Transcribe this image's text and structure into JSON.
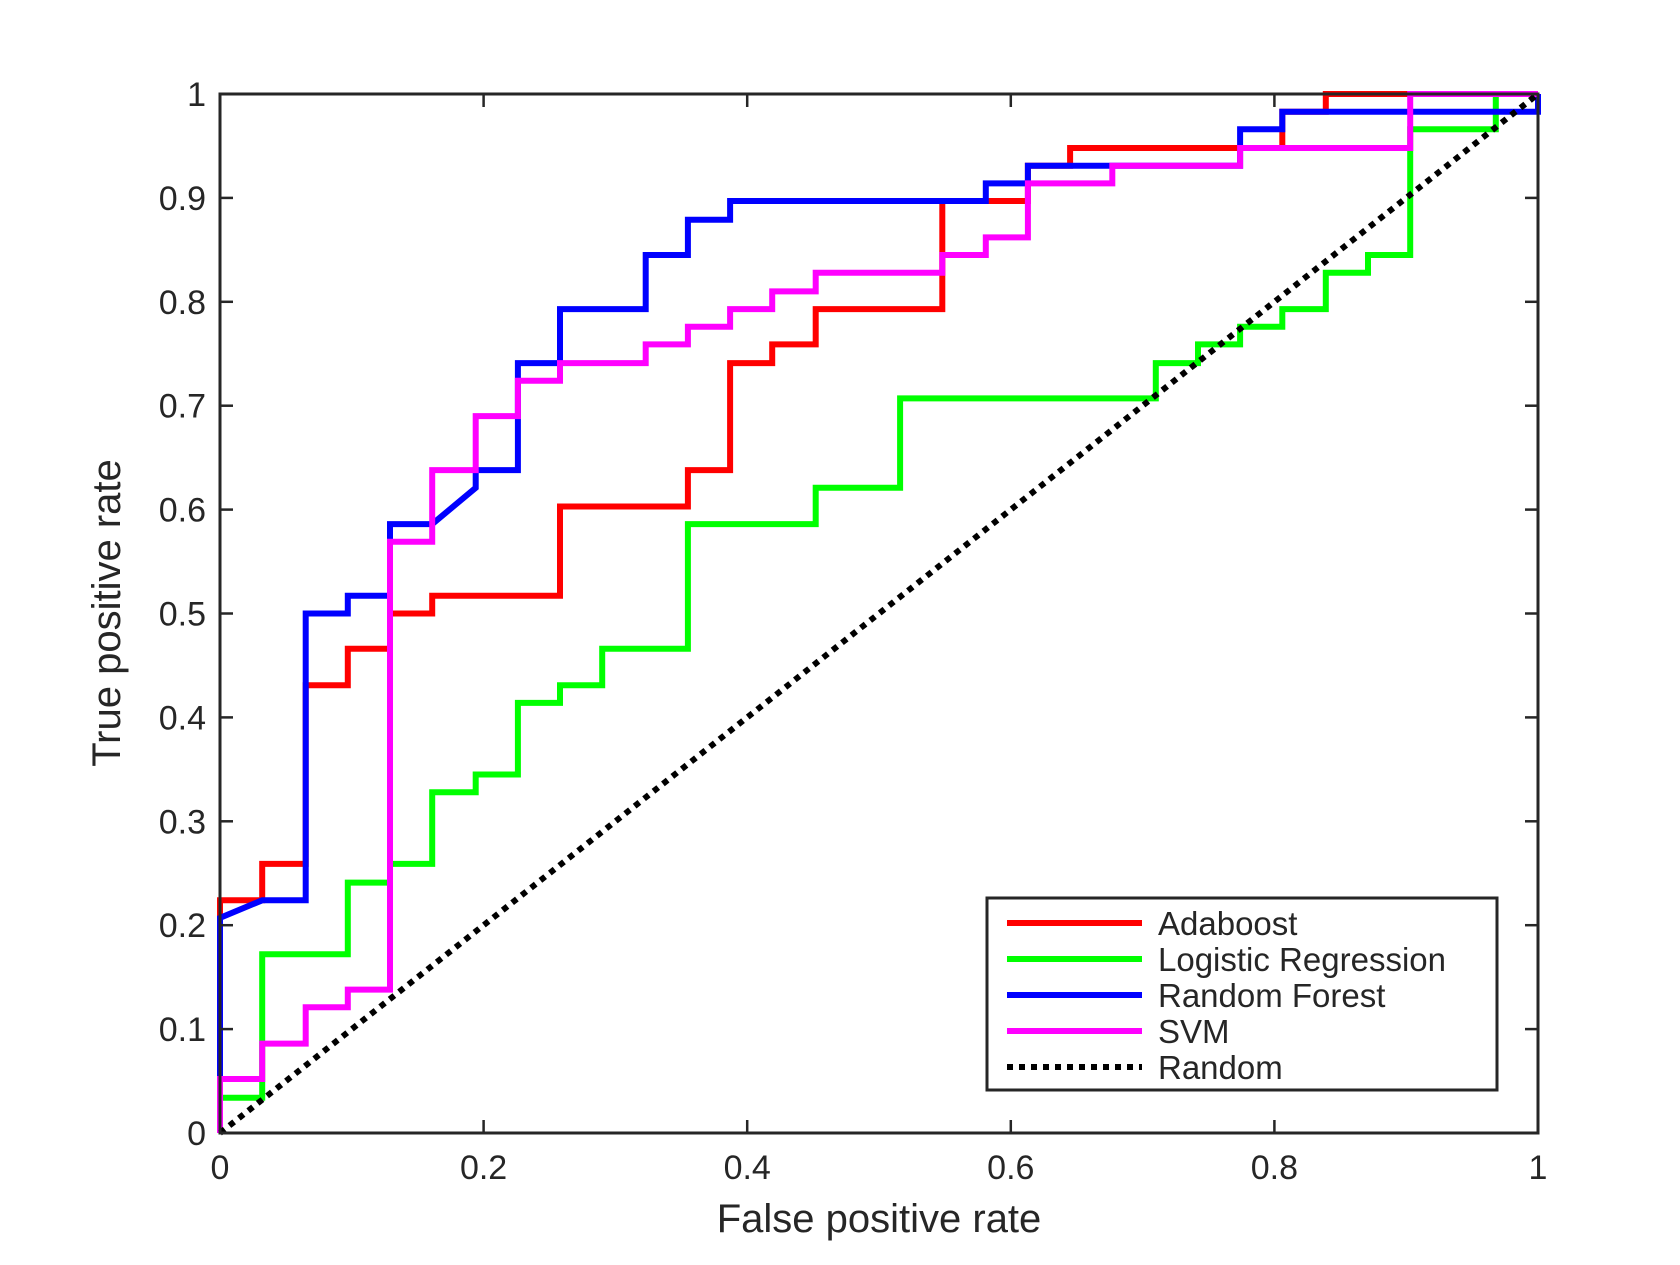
{
  "chart_data": {
    "type": "line",
    "title": "",
    "xlabel": "False positive rate",
    "ylabel": "True positive rate",
    "xlim": [
      0,
      1
    ],
    "ylim": [
      0,
      1
    ],
    "xticks": [
      0,
      0.2,
      0.4,
      0.6,
      0.8,
      1
    ],
    "xtick_labels": [
      "0",
      "0.2",
      "0.4",
      "0.6",
      "0.8",
      "1"
    ],
    "yticks": [
      0,
      0.1,
      0.2,
      0.3,
      0.4,
      0.5,
      0.6,
      0.7,
      0.8,
      0.9,
      1
    ],
    "ytick_labels": [
      "0",
      "0.1",
      "0.2",
      "0.3",
      "0.4",
      "0.5",
      "0.6",
      "0.7",
      "0.8",
      "0.9",
      "1"
    ],
    "grid": false,
    "legend_position": "bottom-right",
    "series": [
      {
        "name": "Adaboost",
        "color": "#ff0000",
        "style": "solid",
        "x": [
          0,
          0,
          0.032,
          0.032,
          0.065,
          0.065,
          0.097,
          0.097,
          0.129,
          0.129,
          0.161,
          0.161,
          0.258,
          0.258,
          0.355,
          0.355,
          0.387,
          0.387,
          0.419,
          0.419,
          0.452,
          0.452,
          0.548,
          0.548,
          0.613,
          0.613,
          0.645,
          0.645,
          0.806,
          0.806,
          0.839,
          0.839,
          1
        ],
        "y": [
          0,
          0.224,
          0.224,
          0.259,
          0.259,
          0.431,
          0.431,
          0.466,
          0.466,
          0.5,
          0.5,
          0.517,
          0.517,
          0.603,
          0.603,
          0.638,
          0.638,
          0.741,
          0.741,
          0.759,
          0.759,
          0.793,
          0.793,
          0.897,
          0.897,
          0.931,
          0.931,
          0.948,
          0.948,
          0.983,
          0.983,
          1.0,
          1.0
        ]
      },
      {
        "name": "Logistic Regression",
        "color": "#00ff00",
        "style": "solid",
        "x": [
          0,
          0,
          0.032,
          0.032,
          0.097,
          0.097,
          0.129,
          0.129,
          0.161,
          0.161,
          0.194,
          0.194,
          0.226,
          0.226,
          0.258,
          0.258,
          0.29,
          0.29,
          0.355,
          0.355,
          0.452,
          0.452,
          0.516,
          0.516,
          0.71,
          0.71,
          0.742,
          0.742,
          0.774,
          0.774,
          0.806,
          0.806,
          0.839,
          0.839,
          0.871,
          0.871,
          0.903,
          0.903,
          0.968,
          0.968,
          1
        ],
        "y": [
          0,
          0.034,
          0.034,
          0.172,
          0.172,
          0.241,
          0.241,
          0.259,
          0.259,
          0.328,
          0.328,
          0.345,
          0.345,
          0.414,
          0.414,
          0.431,
          0.431,
          0.466,
          0.466,
          0.586,
          0.586,
          0.621,
          0.621,
          0.707,
          0.707,
          0.741,
          0.741,
          0.759,
          0.759,
          0.776,
          0.776,
          0.793,
          0.793,
          0.828,
          0.828,
          0.845,
          0.845,
          0.966,
          0.966,
          1.0,
          1.0
        ]
      },
      {
        "name": "Random Forest",
        "color": "#0000ff",
        "style": "solid",
        "x": [
          0,
          0,
          0.032,
          0.065,
          0.065,
          0.097,
          0.097,
          0.129,
          0.129,
          0.161,
          0.194,
          0.194,
          0.226,
          0.226,
          0.258,
          0.258,
          0.323,
          0.323,
          0.355,
          0.355,
          0.387,
          0.387,
          0.581,
          0.581,
          0.613,
          0.613,
          0.677,
          0.774,
          0.774,
          0.806,
          0.806,
          1,
          1
        ],
        "y": [
          0,
          0.207,
          0.224,
          0.224,
          0.5,
          0.5,
          0.517,
          0.517,
          0.586,
          0.586,
          0.621,
          0.638,
          0.638,
          0.741,
          0.741,
          0.793,
          0.793,
          0.845,
          0.845,
          0.879,
          0.879,
          0.897,
          0.897,
          0.914,
          0.914,
          0.931,
          0.931,
          0.931,
          0.966,
          0.966,
          0.983,
          0.983,
          1.0
        ]
      },
      {
        "name": "SVM",
        "color": "#ff00ff",
        "style": "solid",
        "x": [
          0,
          0,
          0.032,
          0.032,
          0.065,
          0.065,
          0.097,
          0.097,
          0.129,
          0.129,
          0.161,
          0.161,
          0.194,
          0.194,
          0.226,
          0.226,
          0.258,
          0.258,
          0.323,
          0.323,
          0.355,
          0.355,
          0.387,
          0.387,
          0.419,
          0.419,
          0.452,
          0.452,
          0.548,
          0.548,
          0.581,
          0.581,
          0.613,
          0.613,
          0.677,
          0.677,
          0.774,
          0.774,
          0.903,
          0.903,
          1
        ],
        "y": [
          0,
          0.052,
          0.052,
          0.086,
          0.086,
          0.121,
          0.121,
          0.138,
          0.138,
          0.569,
          0.569,
          0.638,
          0.638,
          0.69,
          0.69,
          0.724,
          0.724,
          0.741,
          0.741,
          0.759,
          0.759,
          0.776,
          0.776,
          0.793,
          0.793,
          0.81,
          0.81,
          0.828,
          0.828,
          0.845,
          0.845,
          0.862,
          0.862,
          0.914,
          0.914,
          0.931,
          0.931,
          0.948,
          0.948,
          1.0,
          1.0
        ]
      },
      {
        "name": "Random",
        "color": "#000000",
        "style": "dotted",
        "x": [
          0,
          1
        ],
        "y": [
          0,
          1
        ]
      }
    ]
  }
}
